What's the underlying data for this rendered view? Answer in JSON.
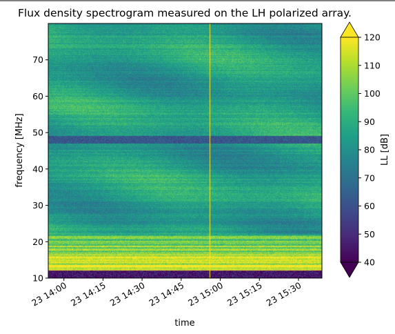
{
  "chart_data": {
    "type": "heatmap",
    "title": "Flux density spectrogram measured on the LH polarized array.",
    "xlabel": "time",
    "ylabel": "frequency [MHz]",
    "colorbar_label": "LL [dB]",
    "colormap": "viridis",
    "colorbar_extend": "both",
    "clim": [
      40,
      120
    ],
    "colorbar_ticks": [
      "40",
      "50",
      "60",
      "70",
      "80",
      "90",
      "100",
      "110",
      "120"
    ],
    "ylim": [
      10,
      80
    ],
    "y_ticks": [
      "10",
      "20",
      "30",
      "40",
      "50",
      "60",
      "70"
    ],
    "x_range": [
      "23 13:54",
      "23 15:39"
    ],
    "x_ticks": [
      "23 14:00",
      "23 14:15",
      "23 14:30",
      "23 14:45",
      "23 15:00",
      "23 15:15",
      "23 15:30"
    ],
    "bright_vertical_line_time": "23 14:56",
    "features": {
      "rfi_band_MHz": [
        10,
        22
      ],
      "rfi_band_level_dB": 118,
      "background_level_dB": 85,
      "noise_floor_MHz": [
        10,
        12
      ],
      "noise_floor_level_dB": 45,
      "dark_band_MHz": [
        47,
        49
      ],
      "dark_band_level_dB": 62
    },
    "colors": [
      "#440154",
      "#482878",
      "#3e4989",
      "#31688e",
      "#26828e",
      "#1f9e89",
      "#35b779",
      "#6ece58",
      "#b5de2b",
      "#fde725"
    ]
  }
}
